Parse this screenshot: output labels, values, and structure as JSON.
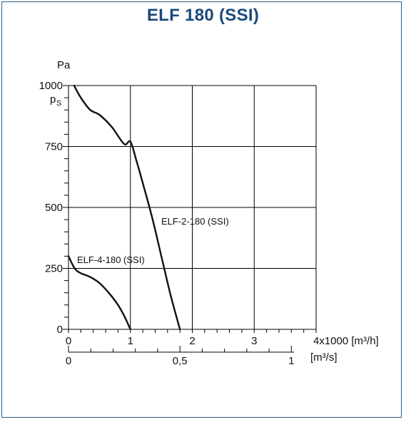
{
  "title": "ELF 180 (SSI)",
  "chart_data": {
    "type": "line",
    "title": "ELF 180 (SSI)",
    "y_unit": "Pa",
    "y_symbol": "p",
    "y_symbol_sub": "S",
    "x_unit_main": "4x1000 [m³/h]",
    "x_unit_secondary": "[m³/s]",
    "xlim": [
      0,
      4
    ],
    "ylim": [
      0,
      1000
    ],
    "x_ticks": [
      0,
      1,
      2,
      3
    ],
    "x_tick_labels": [
      "0",
      "1",
      "2",
      "3"
    ],
    "y_ticks": [
      0,
      250,
      500,
      750,
      1000
    ],
    "y_tick_labels": [
      "0",
      "250",
      "500",
      "750",
      "1000"
    ],
    "x2_ticks": [
      0,
      0.5,
      1
    ],
    "x2_tick_labels": [
      "0",
      "0,5",
      "1"
    ],
    "grid": true,
    "series": [
      {
        "name": "ELF-2-180 (SSI)",
        "x": [
          0.09,
          0.2,
          0.35,
          0.5,
          0.7,
          0.9,
          1.0,
          1.1,
          1.2,
          1.35,
          1.5,
          1.65,
          1.8
        ],
        "y": [
          1000,
          950,
          900,
          880,
          830,
          760,
          770,
          690,
          600,
          460,
          300,
          140,
          0
        ]
      },
      {
        "name": "ELF-4-180 (SSI)",
        "x": [
          0,
          0.1,
          0.2,
          0.35,
          0.5,
          0.65,
          0.8,
          0.9,
          1.0
        ],
        "y": [
          300,
          250,
          230,
          215,
          190,
          150,
          100,
          55,
          0
        ]
      }
    ]
  }
}
